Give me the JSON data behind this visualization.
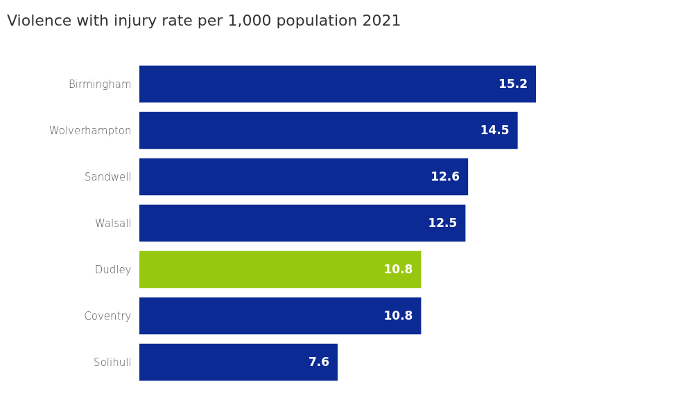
{
  "chart_data": {
    "type": "bar",
    "orientation": "horizontal",
    "title": "Violence with injury rate per 1,000 population 2021",
    "categories": [
      "Birmingham",
      "Wolverhampton",
      "Sandwell",
      "Walsall",
      "Dudley",
      "Coventry",
      "Solihull"
    ],
    "values": [
      15.2,
      14.5,
      12.6,
      12.5,
      10.8,
      10.8,
      7.6
    ],
    "colors": [
      "#0c2a93",
      "#0c2a93",
      "#0c2a93",
      "#0c2a93",
      "#97c80f",
      "#0c2a93",
      "#0c2a93"
    ],
    "data_labels": true
  }
}
